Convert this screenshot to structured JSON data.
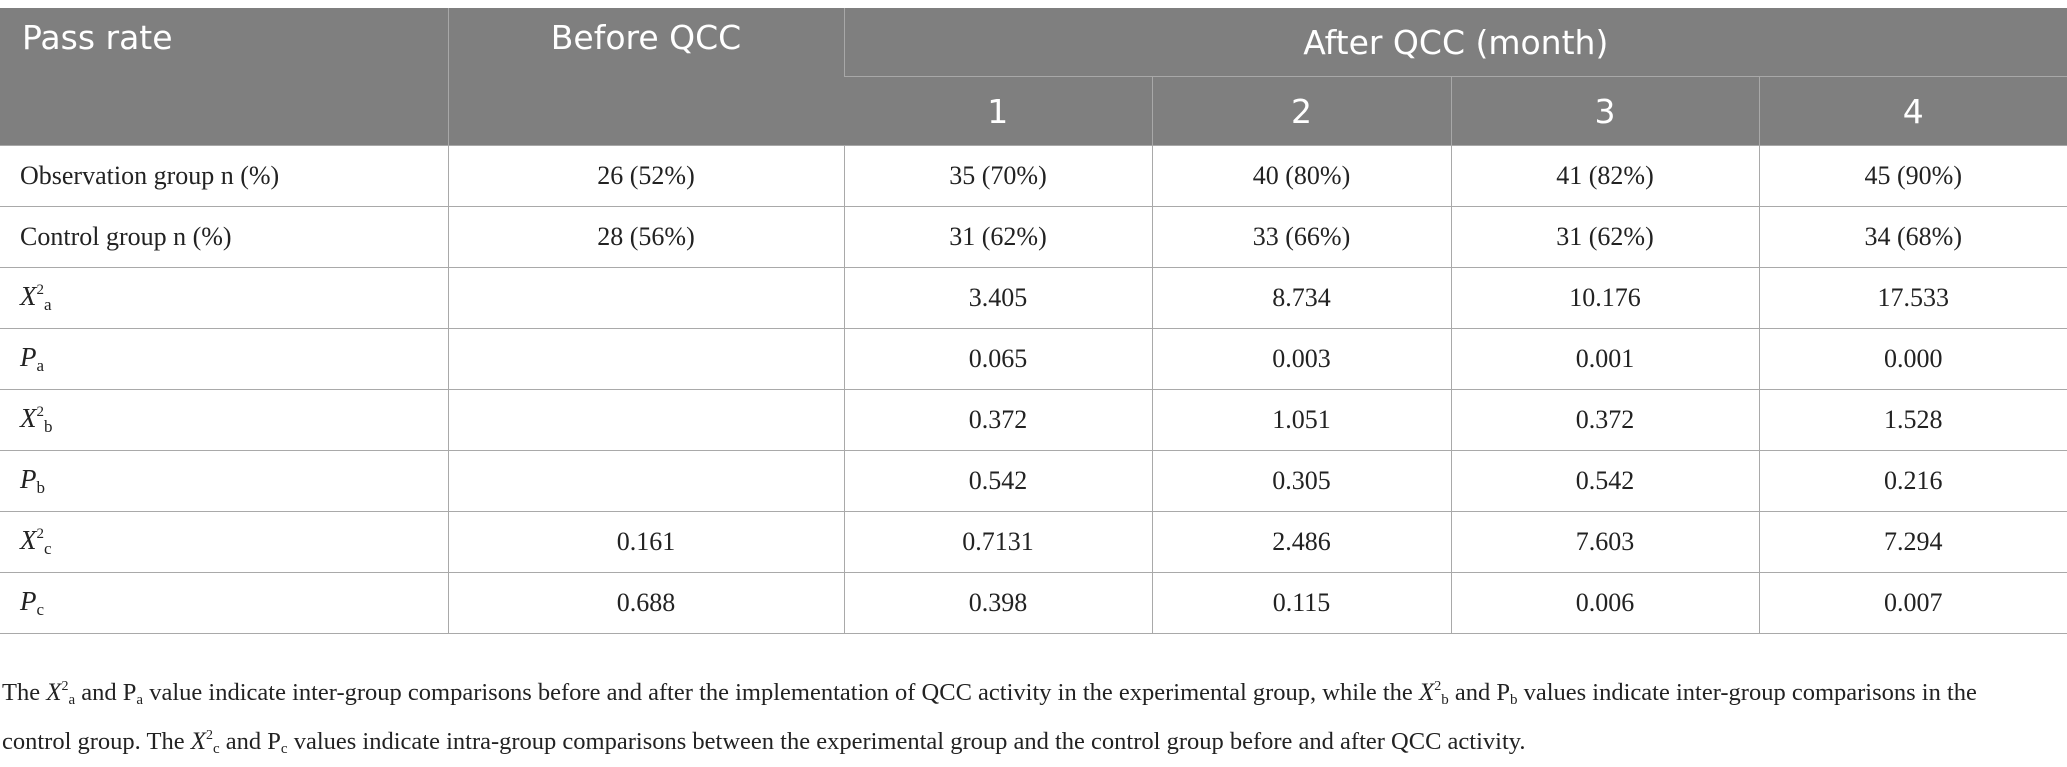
{
  "table": {
    "headers": {
      "pass_rate": "Pass rate",
      "before": "Before QCC",
      "after": "After QCC (month)",
      "months": [
        "1",
        "2",
        "3",
        "4"
      ]
    },
    "rows": [
      {
        "label": "Observation group n (%)",
        "values": [
          "26 (52%)",
          "35 (70%)",
          "40 (80%)",
          "41 (82%)",
          "45 (90%)"
        ]
      },
      {
        "label": "Control group n (%)",
        "values": [
          "28 (56%)",
          "31 (62%)",
          "33 (66%)",
          "31 (62%)",
          "34 (68%)"
        ]
      },
      {
        "symbol": "X",
        "sup": "2",
        "sub": "a",
        "values": [
          "",
          "3.405",
          "8.734",
          "10.176",
          "17.533"
        ]
      },
      {
        "symbol": "P",
        "sub": "a",
        "values": [
          "",
          "0.065",
          "0.003",
          "0.001",
          "0.000"
        ]
      },
      {
        "symbol": "X",
        "sup": "2",
        "sub": "b",
        "values": [
          "",
          "0.372",
          "1.051",
          "0.372",
          "1.528"
        ]
      },
      {
        "symbol": "P",
        "sub": "b",
        "values": [
          "",
          "0.542",
          "0.305",
          "0.542",
          "0.216"
        ]
      },
      {
        "symbol": "X",
        "sup": "2",
        "sub": "c",
        "values": [
          "0.161",
          "0.7131",
          "2.486",
          "7.603",
          "7.294"
        ]
      },
      {
        "symbol": "P",
        "sub": "c",
        "values": [
          "0.688",
          "0.398",
          "0.115",
          "0.006",
          "0.007"
        ]
      }
    ]
  },
  "footnote": {
    "s1": "The ",
    "x": "X",
    "two": "2",
    "a": "a",
    "s2": " and P",
    "s3": " value indicate inter-group comparisons before and after the implementation of QCC activity in the experimental group, while the ",
    "b": "b",
    "s4": " and P",
    "s5": " values indicate inter-group comparisons in the control group. The ",
    "c": "c",
    "s6": " and P",
    "s7": " values indicate intra-group comparisons between the experimental group and the control group before and after QCC activity."
  }
}
